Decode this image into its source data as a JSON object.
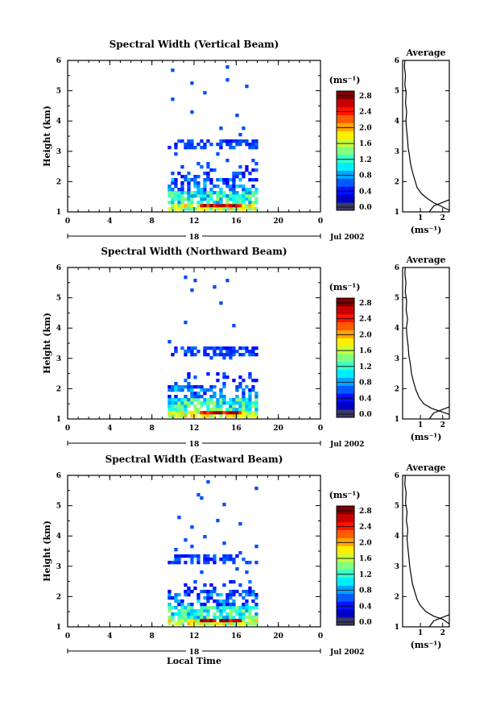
{
  "chart_data": [
    {
      "type": "heatmap",
      "title": "Spectral Width (Vertical Beam)",
      "ylabel": "Height (km)",
      "xlim": [
        0,
        24
      ],
      "ylim": [
        1,
        6
      ],
      "x_ticks": [
        "0",
        "4",
        "8",
        "12",
        "16",
        "20",
        "0"
      ],
      "y_ticks": [
        "1",
        "2",
        "3",
        "4",
        "5",
        "6"
      ],
      "day_label": "18",
      "date_label": "Jul 2002",
      "data_window_hours": [
        9.5,
        18.0
      ],
      "colorbar": {
        "unit": "(ms⁻¹)",
        "ticks": [
          "0.0",
          "0.4",
          "0.8",
          "1.2",
          "1.6",
          "2.0",
          "2.4",
          "2.8"
        ],
        "range": [
          0.0,
          3.0
        ]
      },
      "average": {
        "title": "Average",
        "xlabel": "(ms⁻¹)",
        "x_ticks": [
          "1",
          "2"
        ],
        "y_ticks": [
          "1",
          "2",
          "3",
          "4",
          "5",
          "6"
        ],
        "xlim": [
          0.2,
          2.3
        ],
        "profile": [
          [
            2.3,
            1.05
          ],
          [
            1.9,
            1.2
          ],
          [
            1.6,
            1.3
          ],
          [
            1.3,
            1.45
          ],
          [
            1.05,
            1.6
          ],
          [
            0.85,
            1.8
          ],
          [
            0.75,
            2.05
          ],
          [
            0.65,
            2.3
          ],
          [
            0.55,
            2.6
          ],
          [
            0.5,
            2.9
          ],
          [
            0.45,
            3.1
          ],
          [
            0.42,
            3.4
          ],
          [
            0.38,
            3.7
          ],
          [
            0.35,
            4.0
          ],
          [
            0.38,
            4.3
          ],
          [
            0.33,
            4.6
          ],
          [
            0.36,
            4.9
          ],
          [
            0.3,
            5.2
          ],
          [
            0.33,
            5.5
          ],
          [
            0.28,
            5.8
          ],
          [
            0.3,
            6.0
          ]
        ]
      }
    },
    {
      "type": "heatmap",
      "title": "Spectral Width (Northward Beam)",
      "ylabel": "Height (km)",
      "xlim": [
        0,
        24
      ],
      "ylim": [
        1,
        6
      ],
      "x_ticks": [
        "0",
        "4",
        "8",
        "12",
        "16",
        "20",
        "0"
      ],
      "y_ticks": [
        "1",
        "2",
        "3",
        "4",
        "5",
        "6"
      ],
      "day_label": "18",
      "date_label": "Jul 2002",
      "data_window_hours": [
        9.5,
        18.0
      ],
      "colorbar": {
        "unit": "(ms⁻¹)",
        "ticks": [
          "0.0",
          "0.4",
          "0.8",
          "1.2",
          "1.6",
          "2.0",
          "2.4",
          "2.8"
        ],
        "range": [
          0.0,
          3.0
        ]
      },
      "average": {
        "title": "Average",
        "xlabel": "(ms⁻¹)",
        "x_ticks": [
          "1",
          "2"
        ],
        "y_ticks": [
          "1",
          "2",
          "3",
          "4",
          "5",
          "6"
        ],
        "xlim": [
          0.2,
          2.3
        ],
        "profile": [
          [
            2.3,
            1.15
          ],
          [
            1.9,
            1.25
          ],
          [
            1.5,
            1.35
          ],
          [
            1.15,
            1.5
          ],
          [
            0.95,
            1.7
          ],
          [
            0.8,
            1.95
          ],
          [
            0.7,
            2.2
          ],
          [
            0.6,
            2.5
          ],
          [
            0.55,
            2.8
          ],
          [
            0.48,
            3.1
          ],
          [
            0.45,
            3.4
          ],
          [
            0.4,
            3.7
          ],
          [
            0.37,
            4.0
          ],
          [
            0.42,
            4.3
          ],
          [
            0.36,
            4.6
          ],
          [
            0.38,
            4.9
          ],
          [
            0.32,
            5.2
          ],
          [
            0.35,
            5.5
          ],
          [
            0.3,
            5.8
          ],
          [
            0.32,
            6.0
          ]
        ]
      }
    },
    {
      "type": "heatmap",
      "title": "Spectral Width (Eastward Beam)",
      "ylabel": "Height (km)",
      "xlim": [
        0,
        24
      ],
      "ylim": [
        1,
        6
      ],
      "x_ticks": [
        "0",
        "4",
        "8",
        "12",
        "16",
        "20",
        "0"
      ],
      "y_ticks": [
        "1",
        "2",
        "3",
        "4",
        "5",
        "6"
      ],
      "day_label": "18",
      "date_label": "Jul 2002",
      "xlabel": "Local Time",
      "data_window_hours": [
        9.5,
        18.0
      ],
      "colorbar": {
        "unit": "(ms⁻¹)",
        "ticks": [
          "0.0",
          "0.4",
          "0.8",
          "1.2",
          "1.6",
          "2.0",
          "2.4",
          "2.8"
        ],
        "range": [
          0.0,
          3.0
        ]
      },
      "average": {
        "title": "Average",
        "xlabel": "(ms⁻¹)",
        "x_ticks": [
          "1",
          "2"
        ],
        "y_ticks": [
          "1",
          "2",
          "3",
          "4",
          "5",
          "6"
        ],
        "xlim": [
          0.2,
          2.3
        ],
        "profile": [
          [
            2.3,
            1.1
          ],
          [
            2.0,
            1.25
          ],
          [
            1.6,
            1.35
          ],
          [
            1.25,
            1.5
          ],
          [
            1.0,
            1.7
          ],
          [
            0.85,
            1.9
          ],
          [
            0.75,
            2.15
          ],
          [
            0.65,
            2.4
          ],
          [
            0.58,
            2.7
          ],
          [
            0.52,
            3.0
          ],
          [
            0.48,
            3.3
          ],
          [
            0.44,
            3.6
          ],
          [
            0.4,
            3.9
          ],
          [
            0.43,
            4.2
          ],
          [
            0.37,
            4.5
          ],
          [
            0.4,
            4.8
          ],
          [
            0.33,
            5.1
          ],
          [
            0.36,
            5.4
          ],
          [
            0.3,
            5.7
          ],
          [
            0.32,
            6.0
          ]
        ]
      }
    }
  ]
}
